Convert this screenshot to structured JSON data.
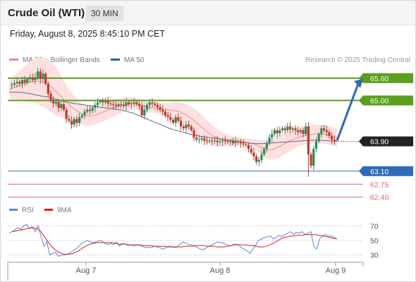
{
  "header": {
    "title": "Crude Oil (WTI)",
    "timeframe": "30 MIN"
  },
  "datetime": "Friday, August 8, 2025 8:45:10 PM CET",
  "legend": {
    "items": [
      {
        "label": "MA 20 + Bollinger Bands",
        "color": "#f08a8a"
      },
      {
        "label": "MA 50",
        "color": "#2e5c9e"
      }
    ],
    "credit": "Research © 2025 Trading Central"
  },
  "colors": {
    "up_candle": "#2e8b57",
    "down_candle": "#c0392b",
    "bollinger_fill": "#fde0e0",
    "resistance": "#5aa01c",
    "current": "#222222",
    "support_blue": "#2e6bb5",
    "support_red": "#e06060",
    "arrow": "#2e6bb5",
    "rsi": "#5b86d6",
    "rsi_ma": "#e02020"
  },
  "chart_data": [
    {
      "type": "candlestick",
      "x_tick_labels": [
        "Aug 7",
        "Aug 8",
        "Aug 9"
      ],
      "ylim": [
        62.3,
        65.9
      ],
      "price_path": [
        65.4,
        65.42,
        65.46,
        65.5,
        65.45,
        65.55,
        65.48,
        65.58,
        65.62,
        65.55,
        65.62,
        65.78,
        65.58,
        65.72,
        65.45,
        65.18,
        65.0,
        64.92,
        64.96,
        64.8,
        64.9,
        64.75,
        64.5,
        64.45,
        64.35,
        64.5,
        64.4,
        64.55,
        64.6,
        64.7,
        64.75,
        64.72,
        64.8,
        64.88,
        64.95,
        65.0,
        64.95,
        64.98,
        64.92,
        64.9,
        64.88,
        64.85,
        64.9,
        64.88,
        64.85,
        64.95,
        64.9,
        64.92,
        64.95,
        64.9,
        64.85,
        64.6,
        64.75,
        64.88,
        64.95,
        64.92,
        64.88,
        64.82,
        64.75,
        64.7,
        64.6,
        64.55,
        64.48,
        64.4,
        64.55,
        64.45,
        64.3,
        64.25,
        64.35,
        64.3,
        64.2,
        64.0,
        63.95,
        63.95,
        63.98,
        63.92,
        63.9,
        63.92,
        63.9,
        63.92,
        63.88,
        63.9,
        63.92,
        63.9,
        63.88,
        63.9,
        63.85,
        63.9,
        63.88,
        63.85,
        63.82,
        63.8,
        63.7,
        63.6,
        63.5,
        63.35,
        63.4,
        63.55,
        63.7,
        63.85,
        64.0,
        64.1,
        64.2,
        64.12,
        64.2,
        64.25,
        64.2,
        64.3,
        64.22,
        64.25,
        64.2,
        64.15,
        64.2,
        64.1,
        64.3,
        63.55,
        63.25,
        63.7,
        63.9,
        64.1,
        64.25,
        64.2,
        64.15,
        64.05,
        63.95,
        63.9
      ],
      "wick_low": 62.95,
      "wick_high": 65.88,
      "ma20": [
        65.3,
        65.35,
        65.4,
        65.45,
        65.5,
        65.52,
        65.5,
        65.45,
        65.35,
        65.2,
        65.05,
        64.9,
        64.78,
        64.68,
        64.6,
        64.58,
        64.6,
        64.66,
        64.72,
        64.78,
        64.83,
        64.87,
        64.9,
        64.92,
        64.9,
        64.86,
        64.82,
        64.8,
        64.78,
        64.76,
        64.74,
        64.72,
        64.68,
        64.6,
        64.5,
        64.38,
        64.26,
        64.14,
        64.04,
        63.98,
        63.94,
        63.92,
        63.9,
        63.9,
        63.88,
        63.85,
        63.8,
        63.73,
        63.68,
        63.68,
        63.74,
        63.82,
        63.9,
        63.96,
        64.02,
        64.06,
        64.08,
        64.1,
        64.1,
        64.08,
        64.04,
        64.0
      ],
      "ma50": [
        65.22,
        65.22,
        65.22,
        65.2,
        65.18,
        65.15,
        65.12,
        65.1,
        65.06,
        65.02,
        64.98,
        64.95,
        64.92,
        64.9,
        64.88,
        64.86,
        64.84,
        64.82,
        64.8,
        64.78,
        64.76,
        64.74,
        64.7,
        64.66,
        64.6,
        64.54,
        64.48,
        64.42,
        64.36,
        64.3,
        64.24,
        64.2,
        64.16,
        64.12,
        64.08,
        64.05,
        64.03,
        64.01,
        63.99,
        63.97,
        63.95,
        63.93,
        63.91,
        63.89,
        63.87,
        63.85,
        63.84,
        63.84,
        63.85,
        63.86,
        63.87,
        63.88,
        63.89,
        63.9,
        63.91,
        63.92,
        63.93,
        63.93,
        63.93,
        63.92,
        63.91,
        63.9
      ],
      "bollinger_width": [
        0.25,
        0.33,
        0.4,
        0.48,
        0.55,
        0.6,
        0.65,
        0.68,
        0.68,
        0.62,
        0.52,
        0.42,
        0.35,
        0.3,
        0.27,
        0.26,
        0.25,
        0.25,
        0.25,
        0.24,
        0.22,
        0.2,
        0.18,
        0.17,
        0.16,
        0.15,
        0.14,
        0.14,
        0.15,
        0.17,
        0.2,
        0.24,
        0.27,
        0.3,
        0.33,
        0.34,
        0.33,
        0.3,
        0.27,
        0.23,
        0.19,
        0.15,
        0.12,
        0.1,
        0.1,
        0.12,
        0.15,
        0.2,
        0.25,
        0.28,
        0.3,
        0.3,
        0.28,
        0.26,
        0.25,
        0.25,
        0.25,
        0.25,
        0.25,
        0.25,
        0.25,
        0.25
      ],
      "levels": [
        {
          "value": 65.6,
          "label": "65.60",
          "kind": "resistance"
        },
        {
          "value": 65.0,
          "label": "65.00",
          "kind": "resistance"
        },
        {
          "value": 63.9,
          "label": "63.90",
          "kind": "current"
        },
        {
          "value": 63.1,
          "label": "63.10",
          "kind": "support_blue"
        },
        {
          "value": 62.75,
          "label": "62.75",
          "kind": "support_red"
        },
        {
          "value": 62.4,
          "label": "62.40",
          "kind": "support_red"
        }
      ],
      "projection": {
        "from": 63.9,
        "to": 65.6,
        "direction": "up"
      }
    },
    {
      "type": "line",
      "series": [
        {
          "name": "RSI",
          "values": [
            60,
            62,
            65,
            68,
            65,
            70,
            72,
            66,
            69,
            62,
            70,
            55,
            42,
            48,
            30,
            32,
            34,
            28,
            30,
            30,
            31,
            33,
            36,
            38,
            42,
            46,
            48,
            50,
            48,
            47,
            48,
            50,
            49,
            46,
            44,
            46,
            44,
            48,
            42,
            46,
            45,
            43,
            44,
            42,
            44,
            43,
            42,
            40,
            41,
            40,
            42,
            41,
            40,
            38,
            40,
            42,
            42,
            40,
            42,
            45,
            48,
            46,
            44,
            44,
            42,
            40,
            38,
            37,
            40,
            42,
            44,
            46,
            48,
            47,
            46,
            44,
            42,
            44,
            45,
            44,
            40,
            38,
            36,
            32,
            38,
            44,
            50,
            52,
            54,
            55,
            56,
            52,
            54,
            57,
            55,
            58,
            60,
            62,
            58,
            61,
            60,
            62,
            58,
            60,
            62,
            42,
            38,
            52,
            56,
            58,
            56,
            56,
            54,
            52
          ]
        },
        {
          "name": "9MA",
          "values": [
            62,
            63,
            64,
            65,
            66,
            67,
            67,
            66,
            62,
            55,
            48,
            42,
            37,
            34,
            32,
            31,
            31,
            32,
            34,
            37,
            40,
            43,
            45,
            46,
            47,
            47,
            47,
            47,
            47,
            46,
            45,
            45,
            45,
            44,
            44,
            44,
            44,
            43,
            43,
            43,
            42,
            42,
            42,
            42,
            41,
            41,
            41,
            41,
            41,
            42,
            42,
            42,
            43,
            43,
            43,
            42,
            42,
            42,
            41,
            41,
            41,
            42,
            43,
            44,
            44,
            44,
            44,
            43,
            43,
            42,
            41,
            41,
            42,
            44,
            46,
            49,
            52,
            54,
            55,
            56,
            56,
            57,
            57,
            58,
            58,
            58,
            58,
            57,
            56,
            55,
            54,
            53,
            52
          ]
        }
      ],
      "y_tick_labels": [
        "70",
        "50",
        "30"
      ],
      "ylim": [
        20,
        80
      ]
    }
  ]
}
